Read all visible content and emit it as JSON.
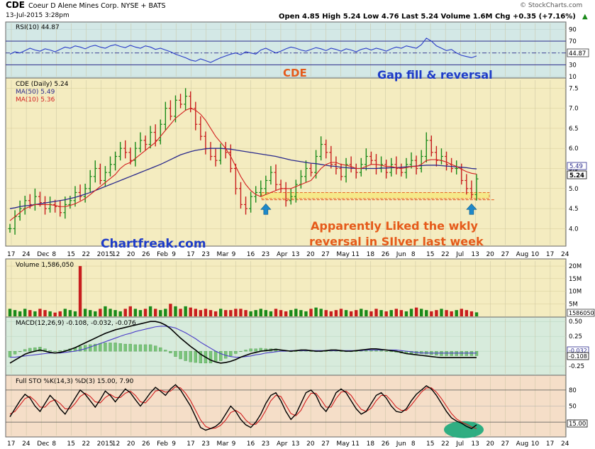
{
  "header": {
    "symbol": "CDE",
    "company": "Coeur D Alene Mines Corp.  NYSE + BATS",
    "date": "13-Jul-2015 3:28pm",
    "quote": "Open 4.85  High 5.24  Low 4.76  Last 5.24  Volume 1.6M  Chg +0.35 (+7.16%)",
    "up_arrow": "▲",
    "copyright": "© StockCharts.com"
  },
  "colors": {
    "price_bg": "#f4ecc0",
    "volume_bg": "#f4ecc0",
    "macd_bg": "#d7ebdc",
    "sto_bg": "#f5dec8",
    "rsi_bg": "#d3e8e6",
    "up_bar": "#1a8a1a",
    "down_bar": "#c81e1e",
    "ma50": "#2a2a8c",
    "ma10": "#d22020",
    "highlight": "#f5e98a",
    "annotation_orange": "#e55a1a",
    "annotation_blue": "#1e3cc8",
    "arrow": "#1e88c8",
    "ellipse": "#1aa87a"
  },
  "annotations": {
    "title": "CDE",
    "gap": "Gap fill & reversal",
    "source": "Chartfreak.com",
    "note_line1": "Apparently Liked the wkly",
    "note_line2": "reversal in SIlver last week"
  },
  "x_axis_labels": [
    "17",
    "24",
    "Dec",
    "8",
    "15",
    "22",
    "2015",
    "12",
    "20",
    "26",
    "Feb",
    "9",
    "17",
    "23",
    "Mar",
    "9",
    "16",
    "23",
    "Apr",
    "13",
    "20",
    "27",
    "May",
    "11",
    "18",
    "26",
    "Jun",
    "8",
    "15",
    "22",
    "Jul",
    "13",
    "20",
    "27",
    "Aug",
    "10",
    "17",
    "24"
  ],
  "chart_data": [
    {
      "panel": "rsi",
      "type": "line",
      "title": "RSI(10) 44.87",
      "ylim": [
        10,
        100
      ],
      "y_ticks": [
        90,
        70,
        50,
        30,
        10
      ],
      "guide_lines": [
        70,
        30
      ],
      "last_value_label": "44.87",
      "values": [
        48,
        52,
        50,
        54,
        58,
        55,
        53,
        57,
        55,
        52,
        56,
        60,
        58,
        62,
        60,
        57,
        61,
        63,
        60,
        58,
        62,
        64,
        61,
        59,
        63,
        60,
        58,
        62,
        60,
        56,
        58,
        55,
        52,
        48,
        45,
        42,
        38,
        36,
        40,
        37,
        34,
        38,
        42,
        45,
        48,
        50,
        47,
        52,
        50,
        48,
        55,
        58,
        54,
        50,
        53,
        57,
        60,
        58,
        55,
        53,
        56,
        59,
        57,
        54,
        58,
        56,
        53,
        57,
        55,
        52,
        56,
        58,
        55,
        58,
        56,
        53,
        57,
        60,
        58,
        62,
        60,
        58,
        64,
        75,
        70,
        62,
        58,
        54,
        56,
        50,
        46,
        44,
        42,
        45
      ]
    },
    {
      "panel": "price",
      "type": "ohlc",
      "title": "CDE (Daily) 5.24",
      "legend": [
        "MA(50) 5.49",
        "MA(10) 5.36"
      ],
      "ylim": [
        3.6,
        7.7
      ],
      "y_ticks": [
        7.5,
        7.0,
        6.5,
        6.0,
        5.5,
        5.0,
        4.5,
        4.0
      ],
      "last_value_labels": [
        "5.49",
        "5.24"
      ],
      "closes": [
        4.0,
        4.3,
        4.5,
        4.7,
        4.6,
        4.8,
        4.65,
        4.5,
        4.6,
        4.55,
        4.4,
        4.6,
        4.7,
        4.9,
        4.8,
        5.0,
        5.3,
        5.5,
        5.2,
        5.4,
        5.6,
        5.8,
        6.0,
        5.9,
        5.7,
        6.0,
        6.2,
        6.1,
        6.4,
        6.2,
        6.6,
        7.0,
        6.8,
        7.2,
        7.1,
        7.3,
        7.0,
        6.6,
        6.3,
        6.0,
        5.8,
        5.7,
        6.0,
        5.9,
        5.5,
        5.0,
        4.6,
        4.5,
        4.8,
        4.9,
        5.0,
        5.2,
        5.4,
        5.1,
        5.0,
        4.7,
        4.8,
        5.1,
        5.3,
        5.5,
        5.4,
        5.8,
        6.1,
        5.9,
        5.6,
        5.5,
        5.3,
        5.6,
        5.5,
        5.4,
        5.6,
        5.8,
        5.7,
        5.5,
        5.6,
        5.4,
        5.6,
        5.5,
        5.4,
        5.6,
        5.7,
        5.5,
        5.8,
        6.2,
        5.9,
        5.7,
        5.8,
        5.6,
        5.5,
        5.5,
        5.2,
        5.0,
        4.85,
        5.24
      ],
      "ma50": [
        4.5,
        4.52,
        4.55,
        4.57,
        4.58,
        4.6,
        4.62,
        4.64,
        4.66,
        4.68,
        4.7,
        4.72,
        4.75,
        4.78,
        4.82,
        4.86,
        4.9,
        4.95,
        5.0,
        5.05,
        5.1,
        5.15,
        5.2,
        5.25,
        5.3,
        5.35,
        5.4,
        5.45,
        5.5,
        5.55,
        5.6,
        5.66,
        5.72,
        5.78,
        5.84,
        5.88,
        5.92,
        5.95,
        5.97,
        5.99,
        6.0,
        6.0,
        6.0,
        5.99,
        5.98,
        5.96,
        5.94,
        5.92,
        5.9,
        5.88,
        5.86,
        5.84,
        5.82,
        5.8,
        5.77,
        5.74,
        5.71,
        5.69,
        5.67,
        5.65,
        5.63,
        5.62,
        5.6,
        5.58,
        5.56,
        5.55,
        5.53,
        5.52,
        5.51,
        5.5,
        5.5,
        5.5,
        5.5,
        5.5,
        5.51,
        5.51,
        5.52,
        5.52,
        5.53,
        5.54,
        5.55,
        5.56,
        5.57,
        5.58,
        5.58,
        5.58,
        5.57,
        5.56,
        5.55,
        5.54,
        5.53,
        5.52,
        5.5,
        5.49
      ],
      "ma10": [
        4.2,
        4.3,
        4.4,
        4.5,
        4.55,
        4.6,
        4.6,
        4.6,
        4.6,
        4.58,
        4.55,
        4.55,
        4.58,
        4.62,
        4.68,
        4.75,
        4.85,
        4.95,
        5.05,
        5.15,
        5.25,
        5.35,
        5.5,
        5.6,
        5.65,
        5.75,
        5.85,
        5.95,
        6.05,
        6.15,
        6.3,
        6.45,
        6.6,
        6.75,
        6.85,
        6.95,
        7.0,
        6.95,
        6.85,
        6.7,
        6.5,
        6.3,
        6.15,
        6.0,
        5.8,
        5.55,
        5.3,
        5.1,
        4.95,
        4.85,
        4.8,
        4.85,
        4.9,
        4.95,
        5.0,
        5.0,
        5.0,
        5.05,
        5.1,
        5.15,
        5.2,
        5.35,
        5.5,
        5.6,
        5.65,
        5.65,
        5.6,
        5.58,
        5.55,
        5.5,
        5.5,
        5.55,
        5.6,
        5.6,
        5.58,
        5.55,
        5.55,
        5.52,
        5.5,
        5.52,
        5.55,
        5.55,
        5.6,
        5.7,
        5.72,
        5.72,
        5.7,
        5.66,
        5.6,
        5.55,
        5.48,
        5.42,
        5.38,
        5.36
      ],
      "support_band": [
        4.75,
        4.9
      ],
      "arrow_indices": [
        51,
        92
      ]
    },
    {
      "panel": "volume",
      "type": "bar",
      "title": "Volume 1,586,050",
      "ylim": [
        0,
        22
      ],
      "unit": "M",
      "y_ticks": [
        20,
        15,
        10,
        5
      ],
      "y_tick_labels": [
        "20M",
        "15M",
        "10M",
        "5M"
      ],
      "last_value_label": "1586050",
      "values": [
        3,
        2.5,
        2,
        3,
        2.5,
        2,
        3,
        2.5,
        2,
        1.5,
        2,
        3,
        2.5,
        2,
        20,
        3,
        2.5,
        2,
        3,
        4,
        3,
        2.5,
        2,
        3,
        4,
        3,
        2.5,
        3,
        4,
        3,
        2.5,
        3,
        5,
        4,
        3,
        4,
        3.5,
        3,
        2.5,
        3,
        2.5,
        2,
        3,
        2.5,
        2.5,
        3,
        3,
        2.5,
        2,
        2.5,
        3,
        2.5,
        2,
        3,
        2.5,
        2,
        2.5,
        3,
        2.5,
        2,
        3,
        3.5,
        3,
        2.5,
        2,
        2.5,
        3,
        2.5,
        2,
        2.5,
        3,
        2.5,
        2,
        3,
        2.5,
        2,
        2.5,
        3,
        2.5,
        2,
        3,
        3.5,
        3,
        2.5,
        2,
        2.5,
        3,
        2.5,
        2,
        2.5,
        3,
        2.5,
        2,
        1.6
      ]
    },
    {
      "panel": "macd",
      "type": "line",
      "title": "MACD(12,26,9) -0.108, -0.032, -0.076",
      "ylim": [
        -0.38,
        0.55
      ],
      "y_ticks": [
        0.5,
        0.25,
        0.0,
        -0.25
      ],
      "y_tick_labels": [
        "0.50",
        "0.25",
        "0.00",
        "-0.25"
      ],
      "last_value_labels": [
        "-0.032",
        "-0.108"
      ],
      "macd": [
        -0.2,
        -0.15,
        -0.1,
        -0.05,
        -0.02,
        0.0,
        0.02,
        0.0,
        -0.02,
        -0.03,
        -0.02,
        0.0,
        0.03,
        0.06,
        0.1,
        0.14,
        0.18,
        0.22,
        0.26,
        0.3,
        0.33,
        0.36,
        0.38,
        0.4,
        0.42,
        0.44,
        0.46,
        0.48,
        0.5,
        0.5,
        0.48,
        0.44,
        0.38,
        0.3,
        0.22,
        0.15,
        0.08,
        0.02,
        -0.05,
        -0.1,
        -0.15,
        -0.18,
        -0.2,
        -0.19,
        -0.17,
        -0.14,
        -0.1,
        -0.07,
        -0.04,
        -0.02,
        0.0,
        0.01,
        0.02,
        0.03,
        0.02,
        0.01,
        0.0,
        0.01,
        0.02,
        0.02,
        0.01,
        0.0,
        0.0,
        0.01,
        0.02,
        0.02,
        0.01,
        0.0,
        0.0,
        0.01,
        0.02,
        0.03,
        0.04,
        0.04,
        0.03,
        0.02,
        0.01,
        0.0,
        -0.02,
        -0.04,
        -0.05,
        -0.06,
        -0.07,
        -0.08,
        -0.09,
        -0.1,
        -0.108,
        -0.108,
        -0.108,
        -0.108,
        -0.108,
        -0.108,
        -0.108,
        -0.108
      ],
      "signal": [
        -0.1,
        -0.1,
        -0.09,
        -0.08,
        -0.07,
        -0.06,
        -0.05,
        -0.04,
        -0.03,
        -0.03,
        -0.03,
        -0.02,
        -0.01,
        0.0,
        0.02,
        0.04,
        0.07,
        0.1,
        0.13,
        0.16,
        0.19,
        0.22,
        0.25,
        0.28,
        0.3,
        0.33,
        0.35,
        0.37,
        0.39,
        0.41,
        0.42,
        0.42,
        0.41,
        0.39,
        0.35,
        0.31,
        0.26,
        0.21,
        0.15,
        0.1,
        0.05,
        0.0,
        -0.04,
        -0.07,
        -0.09,
        -0.1,
        -0.1,
        -0.09,
        -0.08,
        -0.06,
        -0.05,
        -0.03,
        -0.02,
        -0.01,
        0.0,
        0.0,
        0.01,
        0.01,
        0.01,
        0.01,
        0.01,
        0.01,
        0.01,
        0.01,
        0.01,
        0.01,
        0.01,
        0.01,
        0.01,
        0.01,
        0.01,
        0.02,
        0.02,
        0.02,
        0.02,
        0.02,
        0.02,
        0.02,
        0.01,
        0.0,
        -0.01,
        -0.02,
        -0.03,
        -0.03,
        -0.032,
        -0.032,
        -0.032,
        -0.032,
        -0.032,
        -0.032,
        -0.032,
        -0.032,
        -0.032,
        -0.032
      ]
    },
    {
      "panel": "sto",
      "type": "line",
      "title": "Full STO %K(14,3) %D(3) 15.00, 7.90",
      "ylim": [
        -5,
        105
      ],
      "y_ticks": [
        80,
        50,
        20
      ],
      "guide_lines": [
        80,
        20
      ],
      "last_value_label": "15.00",
      "k": [
        30,
        45,
        60,
        72,
        65,
        50,
        40,
        55,
        70,
        60,
        45,
        35,
        50,
        65,
        80,
        72,
        60,
        48,
        62,
        78,
        70,
        58,
        70,
        82,
        75,
        62,
        50,
        62,
        75,
        85,
        78,
        70,
        82,
        90,
        80,
        65,
        50,
        30,
        10,
        5,
        8,
        12,
        20,
        35,
        50,
        40,
        25,
        15,
        10,
        20,
        35,
        55,
        70,
        75,
        60,
        40,
        25,
        35,
        55,
        75,
        80,
        70,
        50,
        40,
        55,
        75,
        82,
        75,
        60,
        45,
        35,
        40,
        55,
        70,
        75,
        65,
        50,
        40,
        38,
        45,
        60,
        72,
        80,
        88,
        82,
        70,
        55,
        40,
        28,
        22,
        18,
        12,
        8,
        15
      ],
      "d": [
        35,
        40,
        52,
        64,
        68,
        60,
        48,
        48,
        58,
        62,
        55,
        45,
        45,
        55,
        68,
        74,
        68,
        58,
        56,
        66,
        72,
        66,
        66,
        74,
        78,
        70,
        58,
        56,
        66,
        78,
        80,
        76,
        78,
        86,
        84,
        74,
        60,
        42,
        24,
        12,
        8,
        9,
        14,
        24,
        38,
        42,
        36,
        24,
        16,
        16,
        26,
        42,
        60,
        70,
        68,
        52,
        36,
        32,
        42,
        60,
        74,
        74,
        62,
        48,
        48,
        64,
        76,
        78,
        70,
        56,
        44,
        40,
        46,
        60,
        70,
        70,
        60,
        48,
        42,
        42,
        52,
        64,
        76,
        84,
        84,
        76,
        64,
        50,
        36,
        26,
        20,
        16,
        11,
        7.9
      ]
    }
  ]
}
